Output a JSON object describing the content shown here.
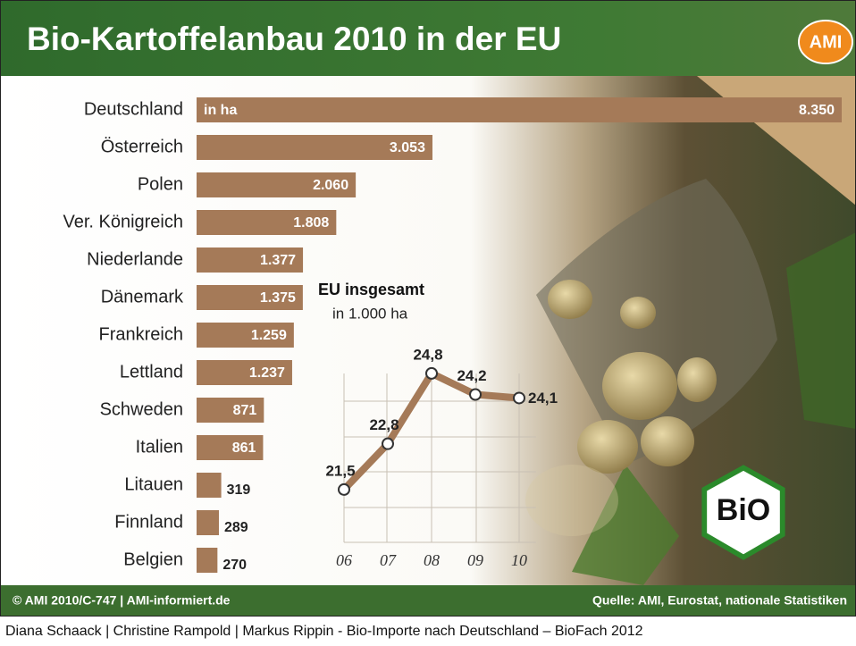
{
  "header": {
    "title": "Bio-Kartoffelanbau 2010 in der EU",
    "logo": "AMI"
  },
  "chart_data": [
    {
      "type": "bar",
      "orientation": "horizontal",
      "annotation": "in ha",
      "color": "#a57a58",
      "categories": [
        "Deutschland",
        "Österreich",
        "Polen",
        "Ver. Königreich",
        "Niederlande",
        "Dänemark",
        "Frankreich",
        "Lettland",
        "Schweden",
        "Italien",
        "Litauen",
        "Finnland",
        "Belgien"
      ],
      "values": [
        8350,
        3053,
        2060,
        1808,
        1377,
        1375,
        1259,
        1237,
        871,
        861,
        319,
        289,
        270
      ],
      "value_labels": [
        "8.350",
        "3.053",
        "2.060",
        "1.808",
        "1.377",
        "1.375",
        "1.259",
        "1.237",
        "871",
        "861",
        "319",
        "289",
        "270"
      ]
    },
    {
      "type": "line",
      "title": "EU insgesamt",
      "subtitle": "in 1.000 ha",
      "color": "#a57a58",
      "categories": [
        "06",
        "07",
        "08",
        "09",
        "10"
      ],
      "values": [
        21.5,
        22.8,
        24.8,
        24.2,
        24.1
      ],
      "value_labels": [
        "21,5",
        "22,8",
        "24,8",
        "24,2",
        "24,1"
      ],
      "ylim": [
        20,
        25
      ]
    }
  ],
  "bio_logo": "BiO",
  "footer": {
    "left": "© AMI 2010/C-747 | AMI-informiert.de",
    "right": "Quelle: AMI, Eurostat, nationale Statistiken"
  },
  "caption": "Diana Schaack | Christine Rampold | Markus Rippin - Bio-Importe nach Deutschland – BioFach 2012"
}
